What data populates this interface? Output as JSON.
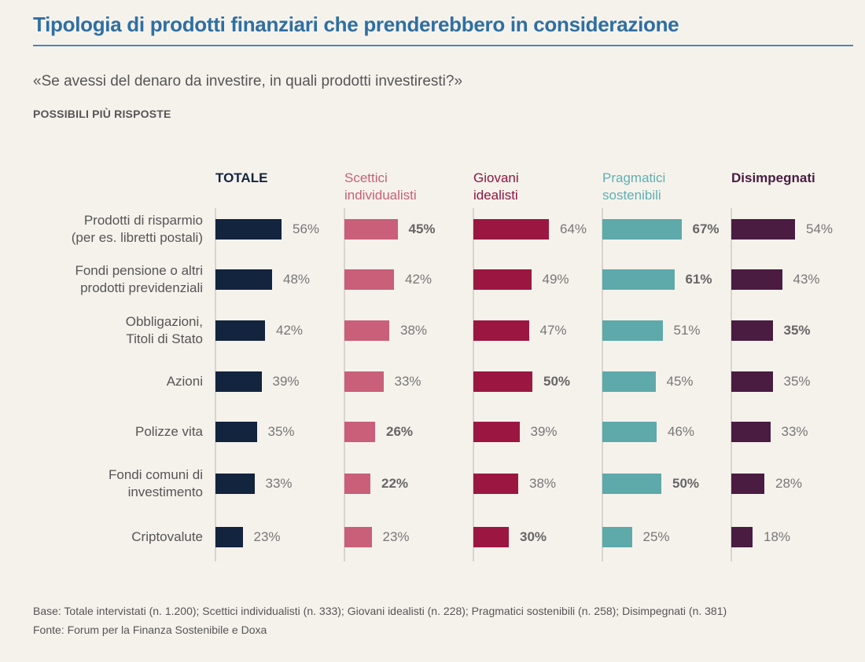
{
  "title": "Tipologia di prodotti finanziari che prenderebbero in considerazione",
  "question": "«Se avessi del denaro da investire, in quali prodotti investiresti?»",
  "note": "POSSIBILI PIÙ RISPOSTE",
  "footer": {
    "base": "Base: Totale intervistati (n. 1.200); Scettici individualisti (n. 333); Giovani idealisti (n. 228); Pragmatici sostenibili (n. 258); Disimpegnati (n. 381)",
    "source": "Fonte: Forum per la Finanza Sostenibile e Doxa"
  },
  "chart_data": {
    "type": "bar",
    "orientation": "horizontal",
    "title": "Tipologia di prodotti finanziari che prenderebbero in considerazione",
    "subtitle": "«Se avessi del denaro da investire, in quali prodotti investiresti?»",
    "unit": "%",
    "categories": [
      "Prodotti di risparmio (per es. libretti postali)",
      "Fondi pensione o altri prodotti previdenziali",
      "Obbligazioni, Titoli di Stato",
      "Azioni",
      "Polizze vita",
      "Fondi comuni di investimento",
      "Criptovalute"
    ],
    "category_lines": [
      [
        "Prodotti di risparmio",
        "(per es. libretti postali)"
      ],
      [
        "Fondi pensione o altri",
        "prodotti previdenziali"
      ],
      [
        "Obbligazioni,",
        "Titoli di Stato"
      ],
      [
        "Azioni"
      ],
      [
        "Polizze vita"
      ],
      [
        "Fondi comuni di",
        "investimento"
      ],
      [
        "Criptovalute"
      ]
    ],
    "series": [
      {
        "name": "TOTALE",
        "name_lines": [
          "TOTALE"
        ],
        "color": "#13243f",
        "header_color": "#13243f",
        "header_bold": true,
        "values": [
          56,
          48,
          42,
          39,
          35,
          33,
          23
        ],
        "highlighted": [
          false,
          false,
          false,
          false,
          false,
          false,
          false
        ]
      },
      {
        "name": "Scettici individualisti",
        "name_lines": [
          "Scettici",
          "individualisti"
        ],
        "color": "#c95f79",
        "header_color": "#c95f79",
        "header_bold": false,
        "values": [
          45,
          42,
          38,
          33,
          26,
          22,
          23
        ],
        "highlighted": [
          true,
          false,
          false,
          false,
          true,
          true,
          false
        ]
      },
      {
        "name": "Giovani idealisti",
        "name_lines": [
          "Giovani",
          "idealisti"
        ],
        "color": "#9b1742",
        "header_color": "#8e1640",
        "header_bold": false,
        "values": [
          64,
          49,
          47,
          50,
          39,
          38,
          30
        ],
        "highlighted": [
          false,
          false,
          false,
          true,
          false,
          false,
          true
        ]
      },
      {
        "name": "Pragmatici sostenibili",
        "name_lines": [
          "Pragmatici",
          "sostenibili"
        ],
        "color": "#5ea9aa",
        "header_color": "#5fb0b1",
        "header_bold": false,
        "values": [
          67,
          61,
          51,
          45,
          46,
          50,
          25
        ],
        "highlighted": [
          true,
          true,
          false,
          false,
          false,
          true,
          false
        ]
      },
      {
        "name": "Disimpegnati",
        "name_lines": [
          "Disimpegnati"
        ],
        "color": "#4a1c42",
        "header_color": "#4a1c42",
        "header_bold": true,
        "values": [
          54,
          43,
          35,
          35,
          33,
          28,
          18
        ],
        "highlighted": [
          false,
          false,
          true,
          false,
          false,
          false,
          false
        ]
      }
    ],
    "xlim": [
      0,
      100
    ],
    "grid": false,
    "legend": "column headers at top"
  }
}
